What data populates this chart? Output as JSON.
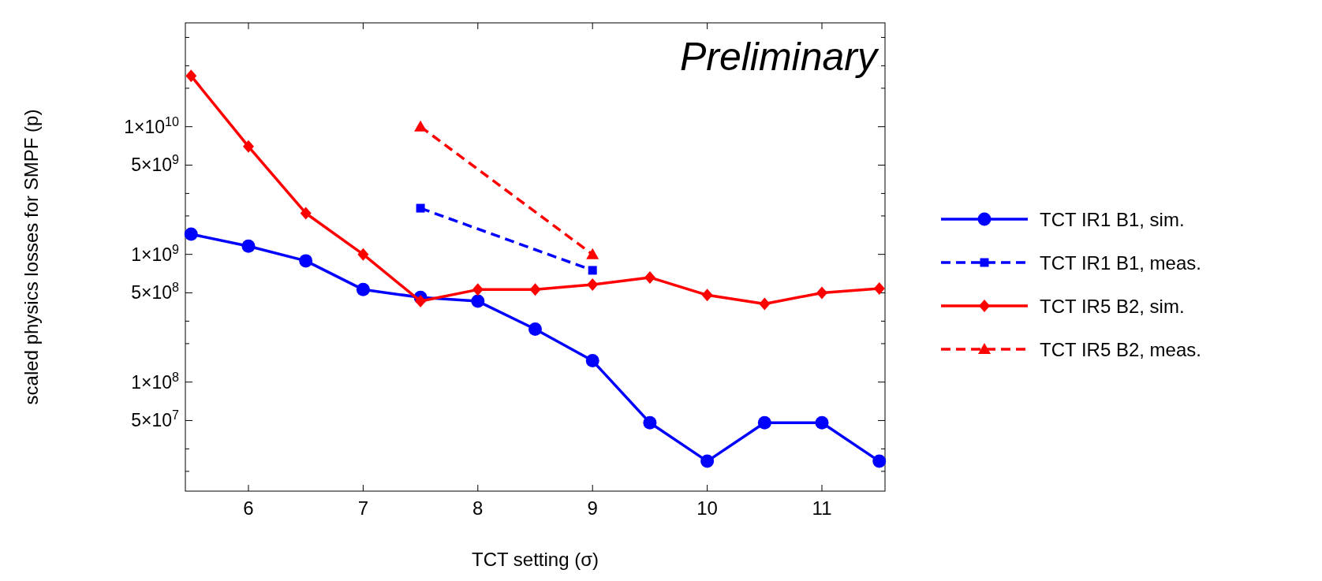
{
  "chart_data": {
    "type": "line",
    "xlabel": "TCT setting (σ)",
    "ylabel": "scaled physics losses for SMPF (p)",
    "log": "y",
    "legend": "right",
    "xlim": [
      5.45,
      11.55
    ],
    "xticks": [
      6,
      7,
      8,
      9,
      10,
      11
    ],
    "ylim": [
      14000000,
      65000000000
    ],
    "yticks": [
      {
        "value": 20000000,
        "label": null
      },
      {
        "value": 30000000,
        "label": null
      },
      {
        "value": 50000000,
        "label": "5×10$^{7}$"
      },
      {
        "value": 100000000,
        "label": "1×10$^{8}$"
      },
      {
        "value": 200000000,
        "label": null
      },
      {
        "value": 300000000,
        "label": null
      },
      {
        "value": 500000000,
        "label": "5×10$^{8}$"
      },
      {
        "value": 1000000000,
        "label": "1×10$^{9}$"
      },
      {
        "value": 2000000000,
        "label": null
      },
      {
        "value": 3000000000,
        "label": null
      },
      {
        "value": 5000000000,
        "label": "5×10$^{9}$"
      },
      {
        "value": 10000000000,
        "label": "1×10$^{10}$"
      },
      {
        "value": 20000000000,
        "label": null
      },
      {
        "value": 30000000000,
        "label": null
      },
      {
        "value": 50000000000,
        "label": null
      }
    ],
    "annotations": [
      "Preliminary"
    ],
    "series": [
      {
        "name": "TCT IR1 B1, sim.",
        "color": "#0000ff",
        "marker": "circle",
        "line_style": "solid",
        "x": [
          5.5,
          6,
          6.5,
          7,
          7.5,
          8,
          8.5,
          9,
          9.5,
          10,
          10.5,
          11,
          11.5
        ],
        "values": [
          1440000000,
          1160000000,
          890000000,
          530000000,
          460000000,
          430000000,
          260000000,
          147000000,
          48000000,
          24000000,
          48000000,
          48000000,
          24000000
        ]
      },
      {
        "name": "TCT IR1 B1, meas.",
        "color": "#0000ff",
        "marker": "square",
        "line_style": "dashed",
        "x": [
          7.5,
          9
        ],
        "values": [
          2300000000,
          750000000
        ]
      },
      {
        "name": "TCT IR5 B2, sim.",
        "color": "#ff0000",
        "marker": "diamond",
        "line_style": "solid",
        "x": [
          5.5,
          6,
          6.5,
          7,
          7.5,
          8,
          8.5,
          9,
          9.5,
          10,
          10.5,
          11,
          11.5
        ],
        "values": [
          25000000000,
          7000000000,
          2100000000,
          1000000000,
          430000000,
          530000000,
          530000000,
          580000000,
          660000000,
          480000000,
          410000000,
          500000000,
          540000000
        ]
      },
      {
        "name": "TCT IR5 B2, meas.",
        "color": "#ff0000",
        "marker": "triangle",
        "line_style": "dashed",
        "x": [
          7.5,
          9
        ],
        "values": [
          10000000000,
          1000000000
        ]
      }
    ]
  }
}
